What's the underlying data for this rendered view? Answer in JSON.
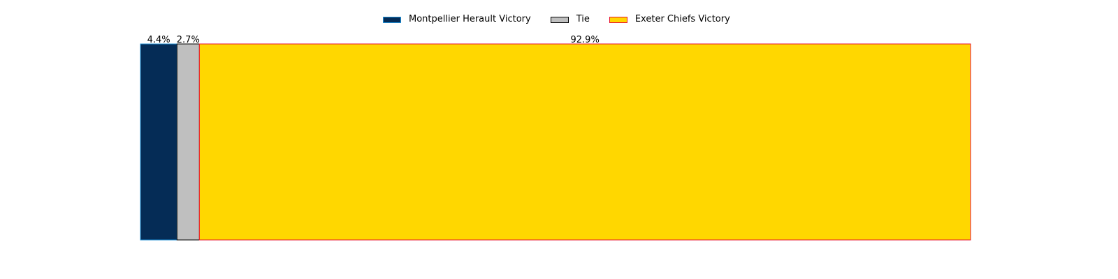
{
  "chart_data": {
    "type": "bar",
    "orientation": "horizontal-stacked",
    "xlim": [
      0,
      100
    ],
    "grid": false,
    "legend_placement": "top-center",
    "segments": [
      {
        "name": "Montpellier Herault Victory",
        "value": 4.4,
        "label": "4.4%",
        "color": "#052C56",
        "edge": "#1F8FD6"
      },
      {
        "name": "Tie",
        "value": 2.7,
        "label": "2.7%",
        "color": "#BFBFBF",
        "edge": "#000000"
      },
      {
        "name": "Exeter Chiefs Victory",
        "value": 92.9,
        "label": "92.9%",
        "color": "#FFD700",
        "edge": "#E8112D"
      }
    ]
  }
}
